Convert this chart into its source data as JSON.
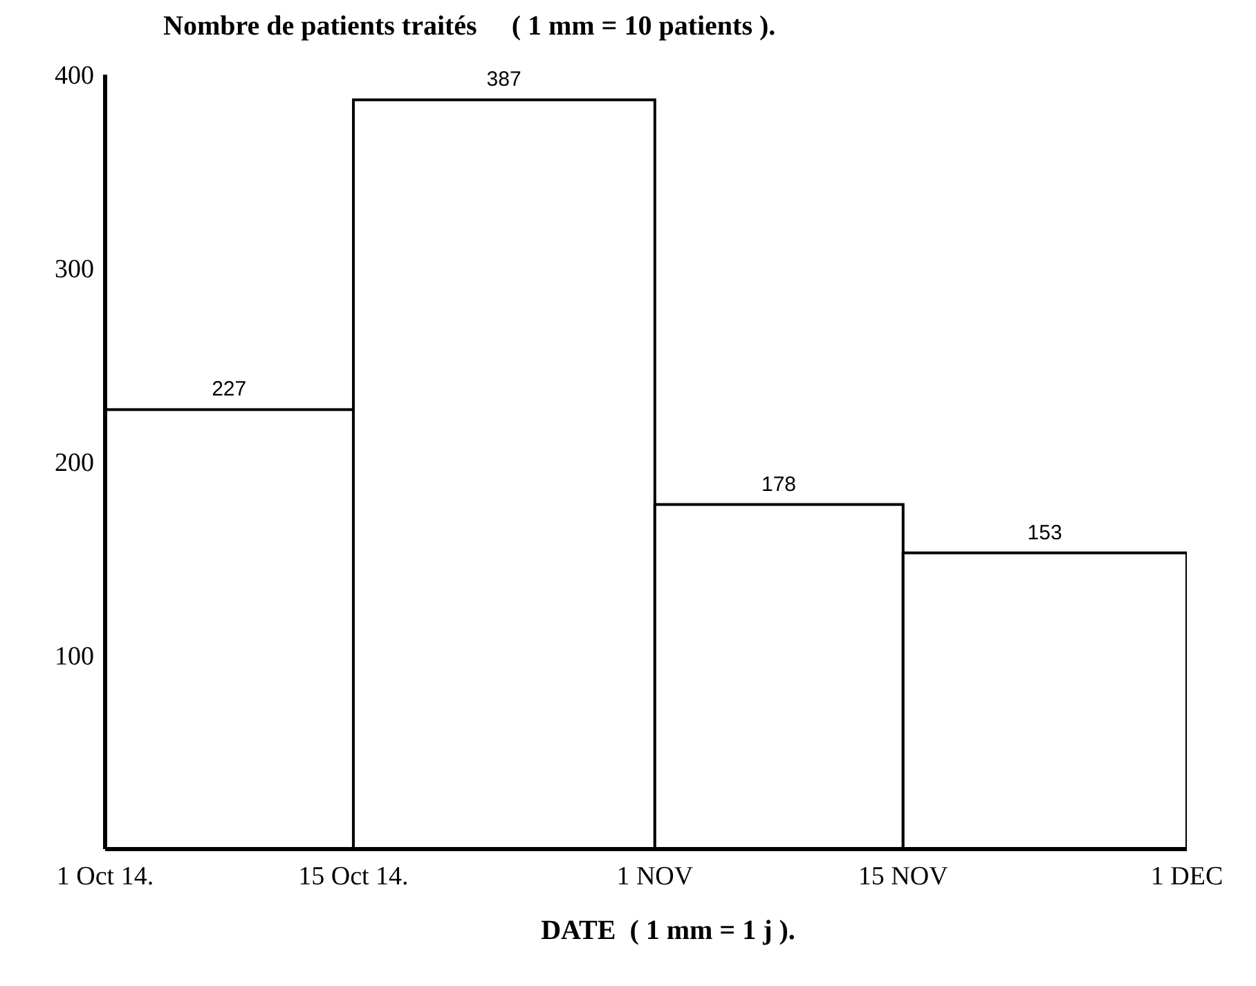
{
  "chart_data": {
    "type": "histogram",
    "title": "Nombre de patients traités     ( 1 mm = 10 patients ).",
    "xlabel": "DATE  ( 1 mm = 1 j ).",
    "bins": [
      "2014-10-01",
      "2014-10-15",
      "2014-11-01",
      "2014-11-15",
      "2014-12-01"
    ],
    "values": [
      227,
      387,
      178,
      153
    ],
    "color": "#ffffff",
    "data_labels": true,
    "xlim": [
      "2014-10-01",
      "2014-12-01"
    ],
    "xticks": [
      {
        "value": "2014-10-01",
        "label": "1 Oct 14."
      },
      {
        "value": "2014-10-15",
        "label": "15 Oct 14."
      },
      {
        "value": "2014-11-01",
        "label": "1 NOV"
      },
      {
        "value": "2014-11-15",
        "label": "15 NOV"
      },
      {
        "value": "2014-12-01",
        "label": "1 DEC"
      }
    ],
    "ylim": [
      0,
      400
    ],
    "yticks": [
      100,
      200,
      300,
      400
    ],
    "grid": false,
    "legend": false
  }
}
